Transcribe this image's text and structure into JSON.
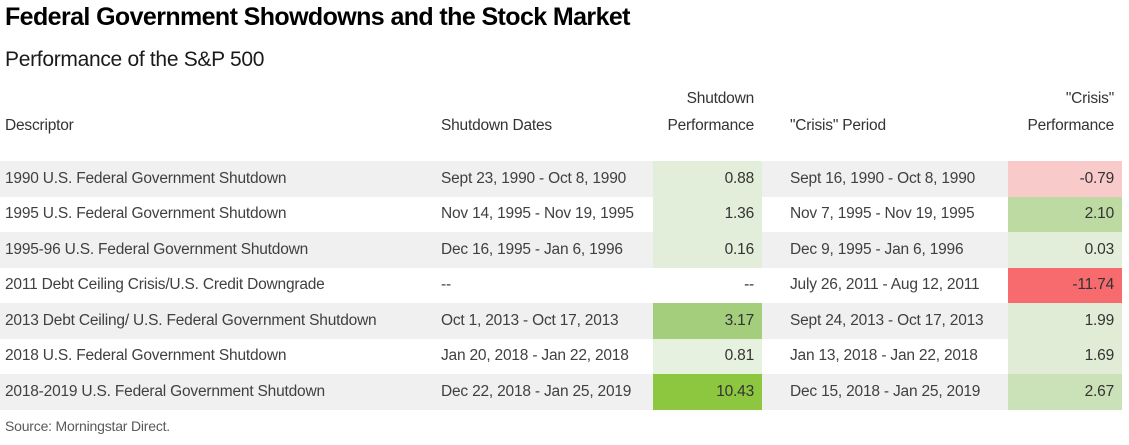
{
  "header": {
    "title": "Federal Government Showdowns and the Stock Market",
    "subtitle": "Performance of the S&P 500"
  },
  "columns": {
    "descriptor": "Descriptor",
    "shutdown_dates": "Shutdown Dates",
    "shutdown_performance_line1": "Shutdown",
    "shutdown_performance_line2": "Performance",
    "crisis_period": "\"Crisis\" Period",
    "crisis_performance_line1": "\"Crisis\"",
    "crisis_performance_line2": "Performance"
  },
  "table": {
    "rows": [
      {
        "descriptor": "1990 U.S. Federal Government Shutdown",
        "shutdown_dates": "Sept 23, 1990 - Oct 8, 1990",
        "shutdown_performance": "0.88",
        "shutdown_performance_bg": "#e2eeda",
        "crisis_period": "Sept 16, 1990 - Oct 8, 1990",
        "crisis_performance": "-0.79",
        "crisis_performance_bg": "#f8caca"
      },
      {
        "descriptor": "1995 U.S. Federal Government Shutdown",
        "shutdown_dates": "Nov 14, 1995 - Nov 19, 1995",
        "shutdown_performance": "1.36",
        "shutdown_performance_bg": "#e2eeda",
        "crisis_period": "Nov 7, 1995 - Nov 19, 1995",
        "crisis_performance": "2.10",
        "crisis_performance_bg": "#bddaa3"
      },
      {
        "descriptor": "1995-96 U.S. Federal Government Shutdown",
        "shutdown_dates": "Dec 16, 1995 - Jan 6, 1996",
        "shutdown_performance": "0.16",
        "shutdown_performance_bg": "#e2eeda",
        "crisis_period": "Dec 9, 1995 - Jan 6, 1996",
        "crisis_performance": "0.03",
        "crisis_performance_bg": "#e2eeda"
      },
      {
        "descriptor": "2011 Debt Ceiling Crisis/U.S. Credit Downgrade",
        "shutdown_dates": "--",
        "shutdown_performance": "--",
        "shutdown_performance_bg": "",
        "crisis_period": "July 26, 2011 - Aug 12, 2011",
        "crisis_performance": "-11.74",
        "crisis_performance_bg": "#f76a6d"
      },
      {
        "descriptor": "2013 Debt Ceiling/ U.S. Federal Government Shutdown",
        "shutdown_dates": "Oct 1, 2013 - Oct 17, 2013",
        "shutdown_performance": "3.17",
        "shutdown_performance_bg": "#a4cd7c",
        "crisis_period": "Sept 24, 2013 - Oct 17, 2013",
        "crisis_performance": "1.99",
        "crisis_performance_bg": "#e0ecd6"
      },
      {
        "descriptor": "2018 U.S. Federal Government Shutdown",
        "shutdown_dates": "Jan 20, 2018 - Jan 22, 2018",
        "shutdown_performance": "0.81",
        "shutdown_performance_bg": "#e7f1e0",
        "crisis_period": "Jan 13, 2018 - Jan 22, 2018",
        "crisis_performance": "1.69",
        "crisis_performance_bg": "#e0ecd6"
      },
      {
        "descriptor": "2018-2019 U.S. Federal Government Shutdown",
        "shutdown_dates": "Dec 22, 2018 - Jan 25, 2019",
        "shutdown_performance": "10.43",
        "shutdown_performance_bg": "#8dc63f",
        "crisis_period": "Dec 15, 2018 - Jan 25, 2019",
        "crisis_performance": "2.67",
        "crisis_performance_bg": "#cbe2b9"
      }
    ],
    "stripe_color": "#f0f0f0"
  },
  "footer": {
    "source": "Source: Morningstar Direct."
  },
  "chart_data": {
    "type": "table",
    "title": "Federal Government Showdowns and the Stock Market",
    "subtitle": "Performance of the S&P 500",
    "columns": [
      "Descriptor",
      "Shutdown Dates",
      "Shutdown Performance",
      "\"Crisis\" Period",
      "\"Crisis\" Performance"
    ],
    "rows": [
      [
        "1990 U.S. Federal Government Shutdown",
        "Sept 23, 1990 - Oct 8, 1990",
        0.88,
        "Sept 16, 1990 - Oct 8, 1990",
        -0.79
      ],
      [
        "1995 U.S. Federal Government Shutdown",
        "Nov 14, 1995 - Nov 19, 1995",
        1.36,
        "Nov 7, 1995 - Nov 19, 1995",
        2.1
      ],
      [
        "1995-96 U.S. Federal Government Shutdown",
        "Dec 16, 1995 - Jan 6, 1996",
        0.16,
        "Dec 9, 1995 - Jan 6, 1996",
        0.03
      ],
      [
        "2011 Debt Ceiling Crisis/U.S. Credit Downgrade",
        null,
        null,
        "July 26, 2011 - Aug 12, 2011",
        -11.74
      ],
      [
        "2013 Debt Ceiling/ U.S. Federal Government Shutdown",
        "Oct 1, 2013 - Oct 17, 2013",
        3.17,
        "Sept 24, 2013 - Oct 17, 2013",
        1.99
      ],
      [
        "2018 U.S. Federal Government Shutdown",
        "Jan 20, 2018 - Jan 22, 2018",
        0.81,
        "Jan 13, 2018 - Jan 22, 2018",
        1.69
      ],
      [
        "2018-2019 U.S. Federal Government Shutdown",
        "Dec 22, 2018 - Jan 25, 2019",
        10.43,
        "Dec 15, 2018 - Jan 25, 2019",
        2.67
      ]
    ],
    "notes": "Cell shading is a heatmap: green for positive performance (darker = higher), red/pink for negative (darker = lower).",
    "source": "Source: Morningstar Direct."
  }
}
